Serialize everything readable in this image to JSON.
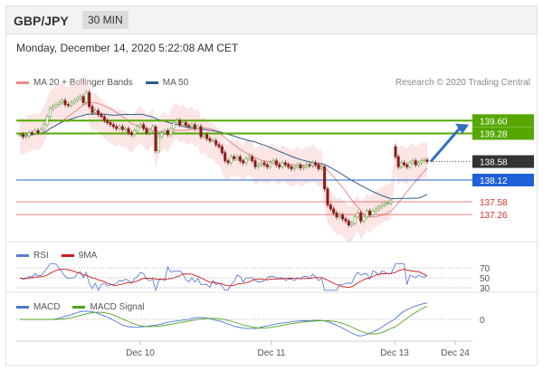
{
  "header": {
    "pair": "GBP/JPY",
    "timeframe": "30 MIN"
  },
  "timestamp": "Monday, December 14, 2020 5:22:08 AM CET",
  "legend": {
    "ma20": "MA 20 + Bollinger Bands",
    "ma50": "MA 50",
    "credit": "Research © 2020 Trading Central",
    "rsi": "RSI",
    "rsi_ma": "9MA",
    "macd": "MACD",
    "macd_signal": "MACD Signal"
  },
  "colors": {
    "green": "#56a800",
    "blue": "#2060d8",
    "red": "#d83030",
    "dark": "#333333",
    "candle_up": "#6aa84f",
    "candle_down": "#8b1a1a",
    "band": "#f7cfcf",
    "ma20": "#e78a8a",
    "ma50": "#2f5d8a",
    "rsi": "#5b7fd6",
    "rsi_ma": "#d01818",
    "macd": "#4a76d4",
    "macd_signal": "#4fa31c"
  },
  "chart_data": {
    "type": "candlestick",
    "instrument": "GBP/JPY",
    "interval": "30 MIN",
    "ylim": [
      136.7,
      140.35
    ],
    "x_labels": [
      "Dec 10",
      "Dec 11",
      "Dec 13",
      "Dec 24"
    ],
    "last_price": 138.58,
    "levels": [
      {
        "value": 139.6,
        "label": "139.60",
        "kind": "resistance"
      },
      {
        "value": 139.28,
        "label": "139.28",
        "kind": "resistance"
      },
      {
        "value": 138.58,
        "label": "138.58",
        "kind": "last"
      },
      {
        "value": 138.12,
        "label": "138.12",
        "kind": "pivot"
      },
      {
        "value": 137.58,
        "label": "137.58",
        "kind": "support"
      },
      {
        "value": 137.26,
        "label": "137.26",
        "kind": "support"
      }
    ],
    "target_arrow": {
      "from": 138.58,
      "to": 139.5
    },
    "closes": [
      139.25,
      139.2,
      139.22,
      139.3,
      139.28,
      139.35,
      139.3,
      139.38,
      139.5,
      139.7,
      139.9,
      139.95,
      140.0,
      140.05,
      140.1,
      140.0,
      139.98,
      140.05,
      140.1,
      140.15,
      140.2,
      140.05,
      140.3,
      139.95,
      139.8,
      139.85,
      139.75,
      139.7,
      139.6,
      139.55,
      139.5,
      139.45,
      139.4,
      139.45,
      139.38,
      139.4,
      139.3,
      139.25,
      139.35,
      139.45,
      139.5,
      139.4,
      139.3,
      139.35,
      139.45,
      138.85,
      139.2,
      139.3,
      139.35,
      139.25,
      139.4,
      139.55,
      139.6,
      139.5,
      139.55,
      139.48,
      139.45,
      139.5,
      139.4,
      139.45,
      139.2,
      139.25,
      139.15,
      139.1,
      139.1,
      139.0,
      138.95,
      138.8,
      138.6,
      138.55,
      138.7,
      138.65,
      138.7,
      138.6,
      138.55,
      138.65,
      138.7,
      138.6,
      138.45,
      138.5,
      138.55,
      138.5,
      138.45,
      138.55,
      138.6,
      138.5,
      138.45,
      138.55,
      138.5,
      138.45,
      138.4,
      138.45,
      138.5,
      138.42,
      138.45,
      138.5,
      138.48,
      138.55,
      138.5,
      138.4,
      138.45,
      137.9,
      137.5,
      137.4,
      137.3,
      137.2,
      137.25,
      137.15,
      137.1,
      137.0,
      137.05,
      137.2,
      137.3,
      137.1,
      137.2,
      137.35,
      137.25,
      137.35,
      137.4,
      137.45,
      137.5,
      137.55,
      137.55,
      137.6
    ],
    "closes_after_gap": [
      138.7,
      138.45,
      138.55,
      138.5,
      138.45,
      138.55,
      138.6,
      138.5,
      138.55,
      138.6,
      138.62,
      138.58
    ],
    "indicators": {
      "rsi": {
        "levels": [
          30,
          50,
          70
        ]
      },
      "macd": {
        "levels": [
          0
        ]
      }
    }
  }
}
